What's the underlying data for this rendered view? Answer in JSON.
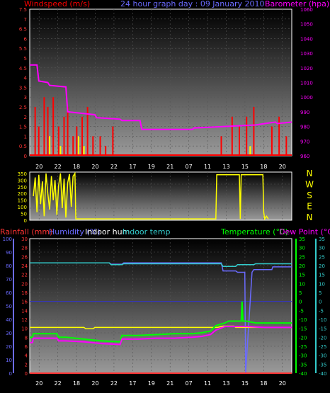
{
  "colors": {
    "background": "#000000",
    "plot_top": "#000000",
    "plot_bottom": "#9a9a9a",
    "wind": "#ff0000",
    "gust": "#ffff00",
    "pressure": "#ff00ff",
    "direction": "#ffff00",
    "rain": "#ff3333",
    "humidity": "#6b6bff",
    "indoor_hum": "#ffff00",
    "indoor_temp": "#33cccc",
    "temperature": "#00ff00",
    "dew_point": "#ff00ff"
  },
  "chart_data": [
    {
      "type": "line",
      "title": "24 hour graph day : 09 January 2010",
      "ylabel_left": "Windspeed (m/s)",
      "ylabel_right": "Barometer (hpa)",
      "x_ticks": [
        "20",
        "22",
        "18",
        "20",
        "22",
        "17",
        "19",
        "21",
        "07",
        "11",
        "13",
        "15",
        "18",
        "20"
      ],
      "y_left_ticks": [
        "0",
        "0.5",
        "1",
        "1.5",
        "2",
        "2.5",
        "3",
        "3.5",
        "4",
        "4.5",
        "5",
        "5.5",
        "6",
        "6.5",
        "7",
        "7.5"
      ],
      "y_right_ticks": [
        "960",
        "970",
        "980",
        "990",
        "1000",
        "1010",
        "1020",
        "1030",
        "1040",
        "1050",
        "1060"
      ],
      "ylim_left": [
        0,
        7.5
      ],
      "ylim_right": [
        960,
        1060
      ],
      "series": [
        {
          "name": "Barometer (hpa)",
          "axis": "right",
          "x": [
            0,
            0.4,
            0.5,
            1.0,
            1.1,
            2.0,
            2.1,
            3.6,
            3.7,
            5.0,
            5.1,
            6.1,
            6.2,
            9.0,
            9.1,
            12.5,
            13.0,
            13.6,
            13.7,
            14.5
          ],
          "values": [
            1022,
            1022,
            1011,
            1010,
            1008,
            1007,
            990,
            988,
            986,
            985,
            984,
            984,
            978,
            978,
            979,
            981,
            982,
            983,
            982,
            983
          ]
        },
        {
          "name": "Windspeed (m/s)",
          "axis": "left",
          "style": "bars",
          "x": [
            0.3,
            0.5,
            0.8,
            1.0,
            1.3,
            1.6,
            1.9,
            2.1,
            2.4,
            2.6,
            2.9,
            3.2,
            3.5,
            3.9,
            4.2,
            4.6,
            10.6,
            11.2,
            11.6,
            12.0,
            12.4,
            13.4,
            13.8,
            14.2
          ],
          "values": [
            2.5,
            1.5,
            3.0,
            2.5,
            3.0,
            1.5,
            2.0,
            2.5,
            1.0,
            1.5,
            2.0,
            2.5,
            1.0,
            1.0,
            0.5,
            1.5,
            1.0,
            2.0,
            1.5,
            2.0,
            2.5,
            1.5,
            2.0,
            1.0
          ]
        },
        {
          "name": "Gust",
          "axis": "left",
          "style": "bars",
          "x": [
            1.1,
            1.7,
            2.7,
            3.0,
            12.2
          ],
          "values": [
            1.0,
            0.5,
            1.0,
            0.5,
            0.5
          ]
        }
      ]
    },
    {
      "type": "line",
      "ylabel_right": "N W S E N",
      "right_labels": [
        "N",
        "W",
        "S",
        "E",
        "N"
      ],
      "y_left_ticks": [
        "0",
        "50",
        "100",
        "150",
        "200",
        "250",
        "300",
        "350"
      ],
      "ylim": [
        0,
        360
      ],
      "series": [
        {
          "name": "Wind direction",
          "x": [
            0.2,
            0.3,
            0.4,
            0.5,
            0.6,
            0.7,
            0.8,
            0.9,
            1.0,
            1.1,
            1.2,
            1.3,
            1.4,
            1.5,
            1.6,
            1.7,
            1.8,
            1.9,
            2.0,
            2.1,
            2.2,
            2.3,
            2.4,
            2.5,
            2.55,
            2.6,
            2.8,
            10.3,
            10.35,
            11.6,
            11.65,
            11.7,
            12.9,
            12.95,
            13.0,
            13.1,
            13.2
          ],
          "values": [
            180,
            320,
            60,
            340,
            120,
            290,
            30,
            350,
            200,
            80,
            330,
            150,
            300,
            40,
            260,
            350,
            90,
            310,
            20,
            280,
            345,
            100,
            330,
            350,
            10,
            10,
            10,
            10,
            340,
            340,
            10,
            340,
            340,
            60,
            10,
            30,
            10
          ]
        }
      ]
    },
    {
      "type": "line",
      "legend": [
        "Rainfall (mm)",
        "Humidity (%)",
        "Indoor hum",
        "Indoor temp",
        "Temperature (°C)",
        "Dew Point (°C)"
      ],
      "y_rain_ticks": [
        "0",
        "2",
        "4",
        "6",
        "8",
        "10",
        "12",
        "14",
        "16",
        "18",
        "20",
        "22",
        "24",
        "26",
        "28",
        "30"
      ],
      "y_hum_ticks": [
        "0",
        "10",
        "20",
        "30",
        "40",
        "50",
        "60",
        "70",
        "80",
        "90",
        "100"
      ],
      "y_temp_ticks": [
        "-40",
        "-35",
        "-30",
        "-25",
        "-20",
        "-15",
        "-10",
        "-5",
        "0",
        "5",
        "10",
        "15",
        "20",
        "25",
        "30",
        "35"
      ],
      "ylim_humidity": [
        0,
        100
      ],
      "ylim_temperature": [
        -40,
        35
      ],
      "ylim_rain": [
        0,
        30
      ],
      "series": [
        {
          "name": "Humidity (%)",
          "x": [
            0,
            4.4,
            4.5,
            5.1,
            5.2,
            10.2,
            10.3,
            10.6,
            10.7,
            11.4,
            11.5,
            11.8,
            11.9,
            11.95,
            12.3,
            12.4,
            13.4,
            13.45,
            14.5
          ],
          "values": [
            82,
            82,
            81,
            81,
            82,
            82,
            82,
            82,
            76,
            76,
            75,
            75,
            75,
            0,
            75,
            77,
            77,
            79,
            79
          ]
        },
        {
          "name": "Indoor hum",
          "x": [
            0,
            3.0,
            3.1,
            3.5,
            3.6,
            10.4,
            10.7,
            11.3,
            11.4,
            14.5
          ],
          "values": [
            34,
            34,
            33,
            33,
            34,
            34,
            35,
            35,
            34,
            34
          ]
        },
        {
          "name": "Indoor temp",
          "x": [
            0,
            4.4,
            4.5,
            5.1,
            5.2,
            10.2,
            10.3,
            10.6,
            10.7,
            11.4,
            11.5,
            12.4,
            12.5,
            14.5
          ],
          "values": [
            21.5,
            21.5,
            20.5,
            20.5,
            21,
            21,
            21,
            21,
            19.5,
            19.5,
            20.5,
            20.5,
            21,
            21
          ]
        },
        {
          "name": "Temperature (°C)",
          "x": [
            0,
            0.15,
            0.2,
            1.5,
            1.6,
            2.0,
            3.0,
            4.0,
            5.0,
            5.1,
            6.0,
            7.0,
            8.0,
            9.0,
            9.5,
            10.0,
            10.3,
            10.8,
            11.0,
            11.7,
            11.75,
            11.8,
            12.0,
            12.5,
            13.0,
            14.5
          ],
          "values": [
            -20,
            -20,
            -18,
            -18,
            -20,
            -20,
            -21,
            -22,
            -22.5,
            -19,
            -19,
            -18.5,
            -18,
            -18,
            -17.5,
            -16.5,
            -13.5,
            -12,
            -11,
            -11,
            0,
            -11,
            -11,
            -12,
            -12,
            -12
          ]
        },
        {
          "name": "Dew Point (°C)",
          "x": [
            0,
            0.15,
            0.2,
            1.5,
            1.6,
            2.0,
            3.0,
            4.0,
            5.0,
            5.1,
            6.0,
            7.0,
            8.0,
            9.0,
            9.5,
            10.0,
            10.3,
            10.8,
            11.5,
            12.0,
            13.0,
            14.5
          ],
          "values": [
            -23,
            -23,
            -20.5,
            -20.5,
            -22,
            -22,
            -22.5,
            -23.5,
            -24,
            -21,
            -21,
            -20.5,
            -20.5,
            -20,
            -19.5,
            -18.5,
            -16,
            -14,
            -14,
            -14,
            -14.5,
            -14.5
          ]
        },
        {
          "name": "Rainfall (mm)",
          "x": [
            0,
            14.5
          ],
          "values": [
            0,
            0
          ]
        }
      ]
    }
  ]
}
